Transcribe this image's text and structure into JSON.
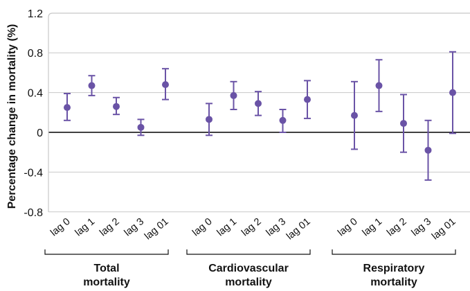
{
  "chart_data": {
    "type": "scatter",
    "ylabel": "Percentage change in mortality (%)",
    "ylim": [
      -0.8,
      1.2
    ],
    "yticks": [
      "1.2",
      "0.8",
      "0.4",
      "0",
      "-0.4",
      "-0.8"
    ],
    "ytick_values": [
      1.2,
      0.8,
      0.4,
      0,
      -0.4,
      -0.8
    ],
    "grid": true,
    "error_bars": true,
    "colors": {
      "marker": "#6a53a6",
      "grid": "#c8c8c8",
      "zero_line": "#000000"
    },
    "groups": [
      {
        "label": "Total mortality",
        "label_lines": [
          "Total",
          "mortality"
        ],
        "categories": [
          "lag 0",
          "lag 1",
          "lag 2",
          "lag 3",
          "lag 01"
        ],
        "values": [
          0.25,
          0.47,
          0.26,
          0.05,
          0.48
        ],
        "lower": [
          0.12,
          0.37,
          0.18,
          -0.03,
          0.33
        ],
        "upper": [
          0.39,
          0.57,
          0.35,
          0.13,
          0.64
        ]
      },
      {
        "label": "Cardiovascular mortality",
        "label_lines": [
          "Cardiovascular",
          "mortality"
        ],
        "categories": [
          "lag 0",
          "lag 1",
          "lag 2",
          "lag 3",
          "lag 01"
        ],
        "values": [
          0.13,
          0.37,
          0.29,
          0.12,
          0.33
        ],
        "lower": [
          -0.03,
          0.23,
          0.17,
          0.0,
          0.14
        ],
        "upper": [
          0.29,
          0.51,
          0.41,
          0.23,
          0.52
        ]
      },
      {
        "label": "Respiratory mortality",
        "label_lines": [
          "Respiratory",
          "mortality"
        ],
        "categories": [
          "lag 0",
          "lag 1",
          "lag 2",
          "lag 3",
          "lag 01"
        ],
        "values": [
          0.17,
          0.47,
          0.09,
          -0.18,
          0.4
        ],
        "lower": [
          -0.17,
          0.21,
          -0.2,
          -0.48,
          -0.01
        ],
        "upper": [
          0.51,
          0.73,
          0.38,
          0.12,
          0.81
        ]
      }
    ]
  }
}
